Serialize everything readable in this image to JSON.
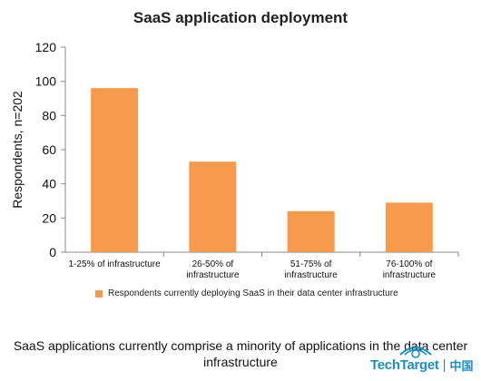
{
  "chart_data": {
    "type": "bar",
    "title": "SaaS application deployment",
    "ylabel": "Respondents, n=202",
    "xlabel": "",
    "categories": [
      [
        "1-25% of infrastructure"
      ],
      [
        "26-50% of",
        "infrastructure"
      ],
      [
        "51-75% of",
        "infrastructure"
      ],
      [
        "76-100% of",
        "infrastructure"
      ]
    ],
    "series": [
      {
        "name": "Respondents currently deploying SaaS in their data center infrastructure",
        "values": [
          96,
          53,
          24,
          29
        ],
        "color": "#f79a4c"
      }
    ],
    "ylim": [
      0,
      120
    ],
    "yticks": [
      0,
      20,
      40,
      60,
      80,
      100,
      120
    ],
    "grid": false,
    "legend": "bottom"
  },
  "caption": "SaaS applications currently comprise a minority of applications in the data center infrastructure",
  "logo": {
    "text": "TechTarget",
    "cn": "中国",
    "color": "#1b8fc4"
  }
}
